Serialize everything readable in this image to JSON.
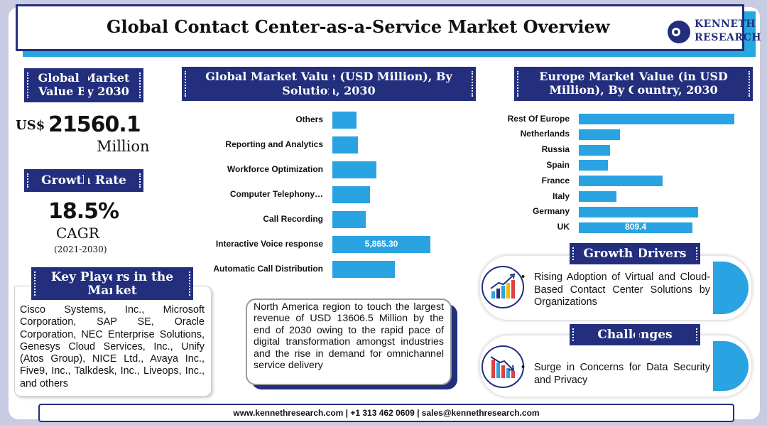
{
  "title": "Global Contact Center-as-a-Service Market Overview",
  "logo": {
    "line1": "KENNETH",
    "line2": "RESEARCH"
  },
  "market_value": {
    "heading_line1": "Global Market",
    "heading_line2": "Value By 2030",
    "currency": "US$",
    "value": "21560.1",
    "unit": "Million"
  },
  "growth": {
    "heading": "Growth Rate",
    "rate": "18.5%",
    "label": "CAGR",
    "period": "(2021-2030)"
  },
  "players": {
    "heading_line1": "Key Players in the",
    "heading_line2": "Market",
    "text": "Cisco Systems, Inc., Microsoft Corporation, SAP SE, Oracle Corporation, NEC Enterprise Solutions, Genesys Cloud Services, Inc., Unify (Atos Group), NICE Ltd., Avaya Inc., Five9, Inc., Talkdesk, Inc., Liveops, Inc., and others"
  },
  "note": "North America region to touch the largest revenue of USD 13606.5 Million by the end of 2030 owing to the rapid pace of digital transformation amongst industries and the rise in demand for omnichannel service delivery",
  "drivers": {
    "heading": "Growth Drivers",
    "bullet": "Rising Adoption of Virtual and Cloud-Based Contact Center Solutions by Organizations"
  },
  "challenges": {
    "heading": "Challenges",
    "bullet": "Surge in Concerns for Data Security and Privacy"
  },
  "footer": "www.kennethresearch.com | +1 313 462 0609 | sales@kennethresearch.com",
  "colors": {
    "navy": "#232f7d",
    "bar": "#29a3e2"
  },
  "chart_data": [
    {
      "type": "bar",
      "orientation": "horizontal",
      "title": "Global Market Value (USD Million), By Solution, 2030",
      "categories": [
        "Others",
        "Reporting and Analytics",
        "Workforce Optimization",
        "Computer Telephony…",
        "Call Recording",
        "Interactive Voice response",
        "Automatic Call Distribution"
      ],
      "values": [
        1430,
        1520,
        2650,
        2250,
        1980,
        5865.3,
        3760
      ],
      "data_labels": [
        null,
        null,
        null,
        null,
        null,
        "5,865.30",
        null
      ],
      "grid": false
    },
    {
      "type": "bar",
      "orientation": "horizontal",
      "title": "Europe Market Value (in USD Million), By Country, 2030",
      "categories": [
        "Rest Of Europe",
        "Netherlands",
        "Russia",
        "Spain",
        "France",
        "Italy",
        "Germany",
        "UK"
      ],
      "values": [
        1110,
        295,
        225,
        210,
        600,
        270,
        850,
        809.4
      ],
      "data_labels": [
        null,
        null,
        null,
        null,
        null,
        null,
        null,
        "809.4"
      ],
      "grid": false
    }
  ]
}
